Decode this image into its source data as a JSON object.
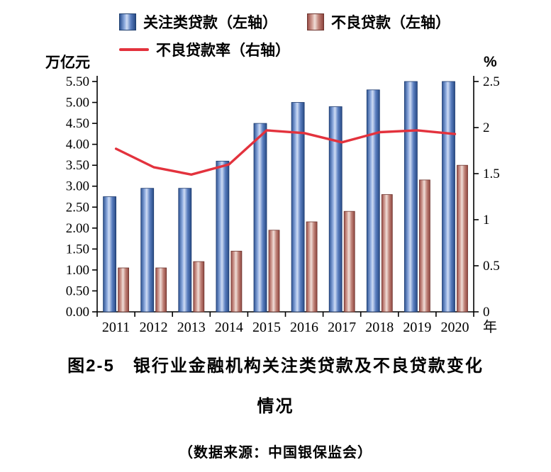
{
  "legend": {
    "items": [
      {
        "label": "关注类贷款（左轴）",
        "swatch": "bar",
        "color_edge": "#2e5494",
        "color_center": "#cfdcf4"
      },
      {
        "label": "不良贷款（左轴）",
        "swatch": "bar",
        "color_edge": "#9c4f48",
        "color_center": "#f0ded8"
      },
      {
        "label": "不良贷款率（右轴）",
        "swatch": "line",
        "color": "#e3323d"
      }
    ]
  },
  "axes": {
    "left_unit": "万亿元",
    "right_unit": "%",
    "x_unit": "年"
  },
  "chart_data": {
    "type": "bar",
    "title": "图2-5　银行业金融机构关注类贷款及不良贷款变化情况",
    "source": "（数据来源：中国银保监会）",
    "categories": [
      "2011",
      "2012",
      "2013",
      "2014",
      "2015",
      "2016",
      "2017",
      "2018",
      "2019",
      "2020"
    ],
    "series": [
      {
        "name": "关注类贷款（左轴）",
        "type": "bar",
        "axis": "left",
        "values": [
          2.75,
          2.95,
          2.95,
          3.6,
          4.5,
          5.0,
          4.9,
          5.3,
          5.5,
          5.5
        ]
      },
      {
        "name": "不良贷款（左轴）",
        "type": "bar",
        "axis": "left",
        "values": [
          1.05,
          1.05,
          1.2,
          1.45,
          1.95,
          2.15,
          2.4,
          2.8,
          3.15,
          3.5
        ]
      },
      {
        "name": "不良贷款率（右轴）",
        "type": "line",
        "axis": "right",
        "values": [
          1.77,
          1.57,
          1.49,
          1.6,
          1.97,
          1.94,
          1.84,
          1.95,
          1.97,
          1.93
        ]
      }
    ],
    "left_axis": {
      "min": 0,
      "max": 5.5,
      "step": 0.5,
      "unit": "万亿元"
    },
    "right_axis": {
      "min": 0,
      "max": 2.5,
      "step": 0.5,
      "unit": "%"
    },
    "x_axis": {
      "unit": "年"
    },
    "legend_position": "top",
    "grid": false,
    "line_color": "#e3323d"
  },
  "caption": {
    "line1": "图2-5　银行业金融机构关注类贷款及不良贷款变化",
    "line2": "情况",
    "source": "（数据来源：中国银保监会）"
  }
}
